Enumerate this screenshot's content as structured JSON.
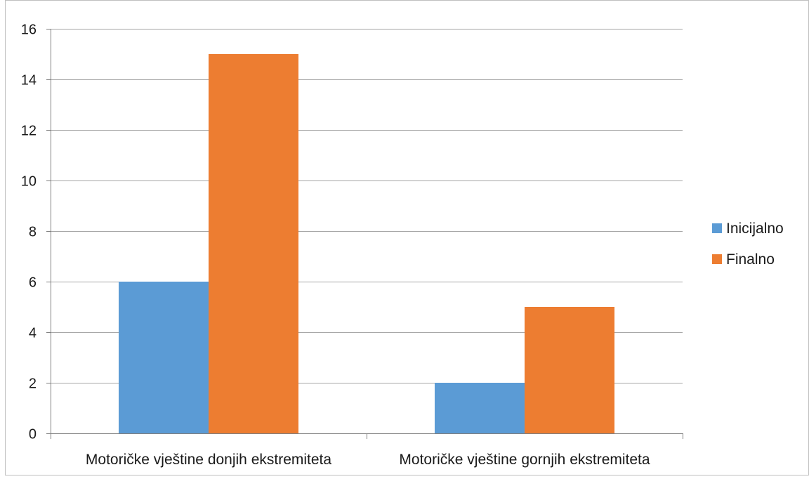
{
  "chart_data": {
    "type": "bar",
    "categories": [
      "Motoričke vještine donjih ekstremiteta",
      "Motoričke vještine gornjih ekstremiteta"
    ],
    "series": [
      {
        "name": "Inicijalno",
        "values": [
          6,
          2
        ],
        "color": "#5b9bd5"
      },
      {
        "name": "Finalno",
        "values": [
          15,
          5
        ],
        "color": "#ed7d31"
      }
    ],
    "ylim": [
      0,
      16
    ],
    "yticks": [
      0,
      2,
      4,
      6,
      8,
      10,
      12,
      14,
      16
    ],
    "grid": true,
    "legend": "right",
    "gridline_color": "#a6a6a6",
    "title": "",
    "xlabel": "",
    "ylabel": ""
  }
}
